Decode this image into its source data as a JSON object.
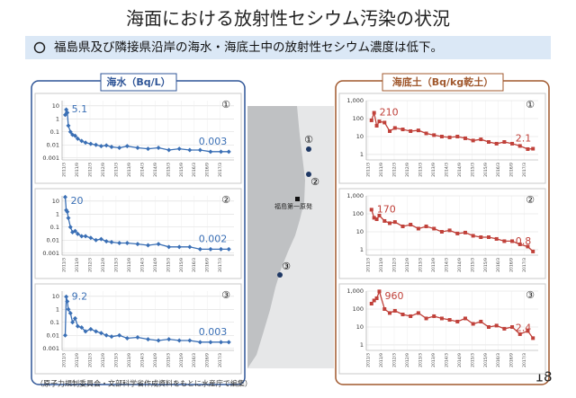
{
  "title": "海面における放射性セシウム汚染の状況",
  "bullet": "福島県及び隣接県沿岸の海水・海底土中の放射性セシウム濃度は低下。",
  "panels": [
    {
      "title": "海水（Bq/L）"
    },
    {
      "title": "海底土（Bq/kg乾土）"
    }
  ],
  "map": {
    "plant": "福島第一原発",
    "points": [
      "①",
      "②",
      "③"
    ]
  },
  "source": "（原子力規制委員会・文部科学省作成資料をもとに水産庁で編集）",
  "page_number": "18",
  "chart_data": [
    {
      "type": "line",
      "label": "①",
      "log": true,
      "grid": true,
      "marker": "diamond",
      "color": "#3a6fb5",
      "x": [
        2011.22,
        2011.26,
        2011.3,
        2011.34,
        2011.42,
        2011.5,
        2011.6,
        2011.7,
        2011.85,
        2012.0,
        2012.2,
        2012.4,
        2012.6,
        2012.8,
        2013.0,
        2013.3,
        2013.6,
        2014.0,
        2014.4,
        2014.8,
        2015.2,
        2015.6,
        2016.0,
        2016.4,
        2016.8,
        2017.2,
        2017.5
      ],
      "values": [
        2,
        5.1,
        3,
        0.3,
        0.1,
        0.06,
        0.05,
        0.03,
        0.02,
        0.015,
        0.012,
        0.01,
        0.008,
        0.009,
        0.007,
        0.006,
        0.008,
        0.006,
        0.005,
        0.006,
        0.004,
        0.005,
        0.004,
        0.004,
        0.003,
        0.003,
        0.003
      ],
      "value_labels": [
        null,
        "5.1",
        null,
        null,
        null,
        null,
        null,
        null,
        null,
        null,
        null,
        null,
        null,
        null,
        null,
        null,
        null,
        null,
        null,
        null,
        null,
        null,
        null,
        null,
        null,
        null,
        "0.003"
      ],
      "xlim": [
        2011.1,
        2017.7
      ],
      "ylim": [
        0.0007,
        25
      ],
      "xticks": [
        {
          "value": 2011.17,
          "label": "2011/3"
        },
        {
          "value": 2011.67,
          "label": "2011/9"
        },
        {
          "value": 2012.17,
          "label": "2012/3"
        },
        {
          "value": 2012.67,
          "label": "2012/9"
        },
        {
          "value": 2013.17,
          "label": "2013/3"
        },
        {
          "value": 2013.67,
          "label": "2013/9"
        },
        {
          "value": 2014.17,
          "label": "2014/3"
        },
        {
          "value": 2014.67,
          "label": "2014/9"
        },
        {
          "value": 2015.17,
          "label": "2015/3"
        },
        {
          "value": 2015.67,
          "label": "2015/9"
        },
        {
          "value": 2016.17,
          "label": "2016/3"
        },
        {
          "value": 2016.67,
          "label": "2016/9"
        },
        {
          "value": 2017.17,
          "label": "2017/3"
        }
      ],
      "yticks": [
        0.001,
        0.01,
        0.1,
        1,
        10
      ]
    },
    {
      "type": "line",
      "label": "②",
      "log": true,
      "grid": true,
      "marker": "diamond",
      "color": "#3a6fb5",
      "x": [
        2011.22,
        2011.26,
        2011.3,
        2011.34,
        2011.42,
        2011.5,
        2011.6,
        2011.7,
        2011.85,
        2012.0,
        2012.2,
        2012.4,
        2012.6,
        2012.8,
        2013.0,
        2013.3,
        2013.6,
        2014.0,
        2014.4,
        2014.8,
        2015.2,
        2015.6,
        2016.0,
        2016.4,
        2016.8,
        2017.2,
        2017.5
      ],
      "values": [
        20,
        2,
        1.5,
        0.5,
        0.1,
        0.04,
        0.05,
        0.03,
        0.02,
        0.02,
        0.015,
        0.01,
        0.012,
        0.008,
        0.007,
        0.006,
        0.006,
        0.005,
        0.004,
        0.005,
        0.003,
        0.003,
        0.003,
        0.002,
        0.002,
        0.002,
        0.002
      ],
      "value_labels": [
        "20",
        null,
        null,
        null,
        null,
        null,
        null,
        null,
        null,
        null,
        null,
        null,
        null,
        null,
        null,
        null,
        null,
        null,
        null,
        null,
        null,
        null,
        null,
        null,
        null,
        null,
        "0.002"
      ],
      "xlim": [
        2011.1,
        2017.7
      ],
      "ylim": [
        0.0007,
        25
      ],
      "xticks": [
        {
          "value": 2011.17,
          "label": "2011/3"
        },
        {
          "value": 2011.67,
          "label": "2011/9"
        },
        {
          "value": 2012.17,
          "label": "2012/3"
        },
        {
          "value": 2012.67,
          "label": "2012/9"
        },
        {
          "value": 2013.17,
          "label": "2013/3"
        },
        {
          "value": 2013.67,
          "label": "2013/9"
        },
        {
          "value": 2014.17,
          "label": "2014/3"
        },
        {
          "value": 2014.67,
          "label": "2014/9"
        },
        {
          "value": 2015.17,
          "label": "2015/3"
        },
        {
          "value": 2015.67,
          "label": "2015/9"
        },
        {
          "value": 2016.17,
          "label": "2016/3"
        },
        {
          "value": 2016.67,
          "label": "2016/9"
        },
        {
          "value": 2017.17,
          "label": "2017/3"
        }
      ],
      "yticks": [
        0.001,
        0.01,
        0.1,
        1,
        10
      ]
    },
    {
      "type": "line",
      "label": "③",
      "log": true,
      "grid": true,
      "marker": "diamond",
      "color": "#3a6fb5",
      "x": [
        2011.22,
        2011.26,
        2011.3,
        2011.34,
        2011.42,
        2011.5,
        2011.6,
        2011.7,
        2011.85,
        2012.0,
        2012.2,
        2012.4,
        2012.6,
        2012.8,
        2013.0,
        2013.3,
        2013.6,
        2014.0,
        2014.4,
        2014.8,
        2015.2,
        2015.6,
        2016.0,
        2016.4,
        2016.8,
        2017.2,
        2017.5
      ],
      "values": [
        0.01,
        9.2,
        4,
        1,
        0.5,
        0.1,
        0.2,
        0.05,
        0.04,
        0.02,
        0.03,
        0.02,
        0.015,
        0.01,
        0.008,
        0.01,
        0.006,
        0.007,
        0.005,
        0.004,
        0.005,
        0.004,
        0.004,
        0.003,
        0.003,
        0.003,
        0.003
      ],
      "value_labels": [
        null,
        "9.2",
        null,
        null,
        null,
        null,
        null,
        null,
        null,
        null,
        null,
        null,
        null,
        null,
        null,
        null,
        null,
        null,
        null,
        null,
        null,
        null,
        null,
        null,
        null,
        null,
        "0.003"
      ],
      "xlim": [
        2011.1,
        2017.7
      ],
      "ylim": [
        0.0007,
        25
      ],
      "xticks": [
        {
          "value": 2011.17,
          "label": "2011/3"
        },
        {
          "value": 2011.67,
          "label": "2011/9"
        },
        {
          "value": 2012.17,
          "label": "2012/3"
        },
        {
          "value": 2012.67,
          "label": "2012/9"
        },
        {
          "value": 2013.17,
          "label": "2013/3"
        },
        {
          "value": 2013.67,
          "label": "2013/9"
        },
        {
          "value": 2014.17,
          "label": "2014/3"
        },
        {
          "value": 2014.67,
          "label": "2014/9"
        },
        {
          "value": 2015.17,
          "label": "2015/3"
        },
        {
          "value": 2015.67,
          "label": "2015/9"
        },
        {
          "value": 2016.17,
          "label": "2016/3"
        },
        {
          "value": 2016.67,
          "label": "2016/9"
        },
        {
          "value": 2017.17,
          "label": "2017/3"
        }
      ],
      "yticks": [
        0.001,
        0.01,
        0.1,
        1,
        10
      ]
    },
    {
      "type": "line",
      "label": "①",
      "log": true,
      "grid": true,
      "marker": "square",
      "color": "#c0413a",
      "x": [
        2011.3,
        2011.4,
        2011.5,
        2011.6,
        2011.8,
        2012.0,
        2012.2,
        2012.5,
        2012.8,
        2013.1,
        2013.4,
        2013.7,
        2014.0,
        2014.3,
        2014.6,
        2014.9,
        2015.2,
        2015.5,
        2015.8,
        2016.1,
        2016.4,
        2016.7,
        2017.0,
        2017.3,
        2017.5
      ],
      "values": [
        80,
        210,
        40,
        70,
        60,
        20,
        30,
        25,
        20,
        22,
        15,
        12,
        10,
        9,
        10,
        8,
        6,
        7,
        5,
        4,
        5,
        4,
        3,
        2,
        2.1
      ],
      "value_labels": [
        null,
        "210",
        null,
        null,
        null,
        null,
        null,
        null,
        null,
        null,
        null,
        null,
        null,
        null,
        null,
        null,
        null,
        null,
        null,
        null,
        null,
        null,
        null,
        null,
        "2.1"
      ],
      "xlim": [
        2011.1,
        2017.7
      ],
      "ylim": [
        0.5,
        1000
      ],
      "xticks": [
        {
          "value": 2011.17,
          "label": "2011/3"
        },
        {
          "value": 2011.67,
          "label": "2011/9"
        },
        {
          "value": 2012.17,
          "label": "2012/3"
        },
        {
          "value": 2012.67,
          "label": "2012/9"
        },
        {
          "value": 2013.17,
          "label": "2013/3"
        },
        {
          "value": 2013.67,
          "label": "2013/9"
        },
        {
          "value": 2014.17,
          "label": "2014/3"
        },
        {
          "value": 2014.67,
          "label": "2014/9"
        },
        {
          "value": 2015.17,
          "label": "2015/3"
        },
        {
          "value": 2015.67,
          "label": "2015/9"
        },
        {
          "value": 2016.17,
          "label": "2016/3"
        },
        {
          "value": 2016.67,
          "label": "2016/9"
        },
        {
          "value": 2017.17,
          "label": "2017/3"
        }
      ],
      "yticks": [
        1,
        10,
        100,
        {
          "value": 1000,
          "label": "1,000"
        }
      ]
    },
    {
      "type": "line",
      "label": "②",
      "log": true,
      "grid": true,
      "marker": "square",
      "color": "#c0413a",
      "x": [
        2011.3,
        2011.4,
        2011.5,
        2011.6,
        2011.8,
        2012.0,
        2012.2,
        2012.5,
        2012.8,
        2013.1,
        2013.4,
        2013.7,
        2014.0,
        2014.3,
        2014.6,
        2014.9,
        2015.2,
        2015.5,
        2015.8,
        2016.1,
        2016.4,
        2016.7,
        2017.0,
        2017.3,
        2017.5
      ],
      "values": [
        170,
        60,
        50,
        80,
        40,
        30,
        35,
        20,
        25,
        15,
        20,
        15,
        10,
        12,
        8,
        9,
        6,
        5,
        5,
        4,
        3,
        3,
        2,
        1.5,
        0.8
      ],
      "value_labels": [
        "170",
        null,
        null,
        null,
        null,
        null,
        null,
        null,
        null,
        null,
        null,
        null,
        null,
        null,
        null,
        null,
        null,
        null,
        null,
        null,
        null,
        null,
        null,
        null,
        "0.8"
      ],
      "xlim": [
        2011.1,
        2017.7
      ],
      "ylim": [
        0.5,
        1000
      ],
      "xticks": [
        {
          "value": 2011.17,
          "label": "2011/3"
        },
        {
          "value": 2011.67,
          "label": "2011/9"
        },
        {
          "value": 2012.17,
          "label": "2012/3"
        },
        {
          "value": 2012.67,
          "label": "2012/9"
        },
        {
          "value": 2013.17,
          "label": "2013/3"
        },
        {
          "value": 2013.67,
          "label": "2013/9"
        },
        {
          "value": 2014.17,
          "label": "2014/3"
        },
        {
          "value": 2014.67,
          "label": "2014/9"
        },
        {
          "value": 2015.17,
          "label": "2015/3"
        },
        {
          "value": 2015.67,
          "label": "2015/9"
        },
        {
          "value": 2016.17,
          "label": "2016/3"
        },
        {
          "value": 2016.67,
          "label": "2016/9"
        },
        {
          "value": 2017.17,
          "label": "2017/3"
        }
      ],
      "yticks": [
        1,
        10,
        100,
        {
          "value": 1000,
          "label": "1,000"
        }
      ]
    },
    {
      "type": "line",
      "label": "③",
      "log": true,
      "grid": true,
      "marker": "square",
      "color": "#c0413a",
      "x": [
        2011.3,
        2011.4,
        2011.5,
        2011.6,
        2011.8,
        2012.0,
        2012.2,
        2012.5,
        2012.8,
        2013.1,
        2013.4,
        2013.7,
        2014.0,
        2014.3,
        2014.6,
        2014.9,
        2015.2,
        2015.5,
        2015.8,
        2016.1,
        2016.4,
        2016.7,
        2017.0,
        2017.3,
        2017.5
      ],
      "values": [
        200,
        300,
        400,
        960,
        100,
        60,
        80,
        50,
        40,
        60,
        30,
        40,
        30,
        25,
        20,
        30,
        15,
        20,
        10,
        12,
        8,
        10,
        4,
        6,
        2.4
      ],
      "value_labels": [
        null,
        null,
        null,
        "960",
        null,
        null,
        null,
        null,
        null,
        null,
        null,
        null,
        null,
        null,
        null,
        null,
        null,
        null,
        null,
        null,
        null,
        null,
        null,
        null,
        "2.4"
      ],
      "xlim": [
        2011.1,
        2017.7
      ],
      "ylim": [
        0.5,
        1000
      ],
      "xticks": [
        {
          "value": 2011.17,
          "label": "2011/3"
        },
        {
          "value": 2011.67,
          "label": "2011/9"
        },
        {
          "value": 2012.17,
          "label": "2012/3"
        },
        {
          "value": 2012.67,
          "label": "2012/9"
        },
        {
          "value": 2013.17,
          "label": "2013/3"
        },
        {
          "value": 2013.67,
          "label": "2013/9"
        },
        {
          "value": 2014.17,
          "label": "2014/3"
        },
        {
          "value": 2014.67,
          "label": "2014/9"
        },
        {
          "value": 2015.17,
          "label": "2015/3"
        },
        {
          "value": 2015.67,
          "label": "2015/9"
        },
        {
          "value": 2016.17,
          "label": "2016/3"
        },
        {
          "value": 2016.67,
          "label": "2016/9"
        },
        {
          "value": 2017.17,
          "label": "2017/3"
        }
      ],
      "yticks": [
        1,
        10,
        100,
        {
          "value": 1000,
          "label": "1,000"
        }
      ]
    }
  ]
}
